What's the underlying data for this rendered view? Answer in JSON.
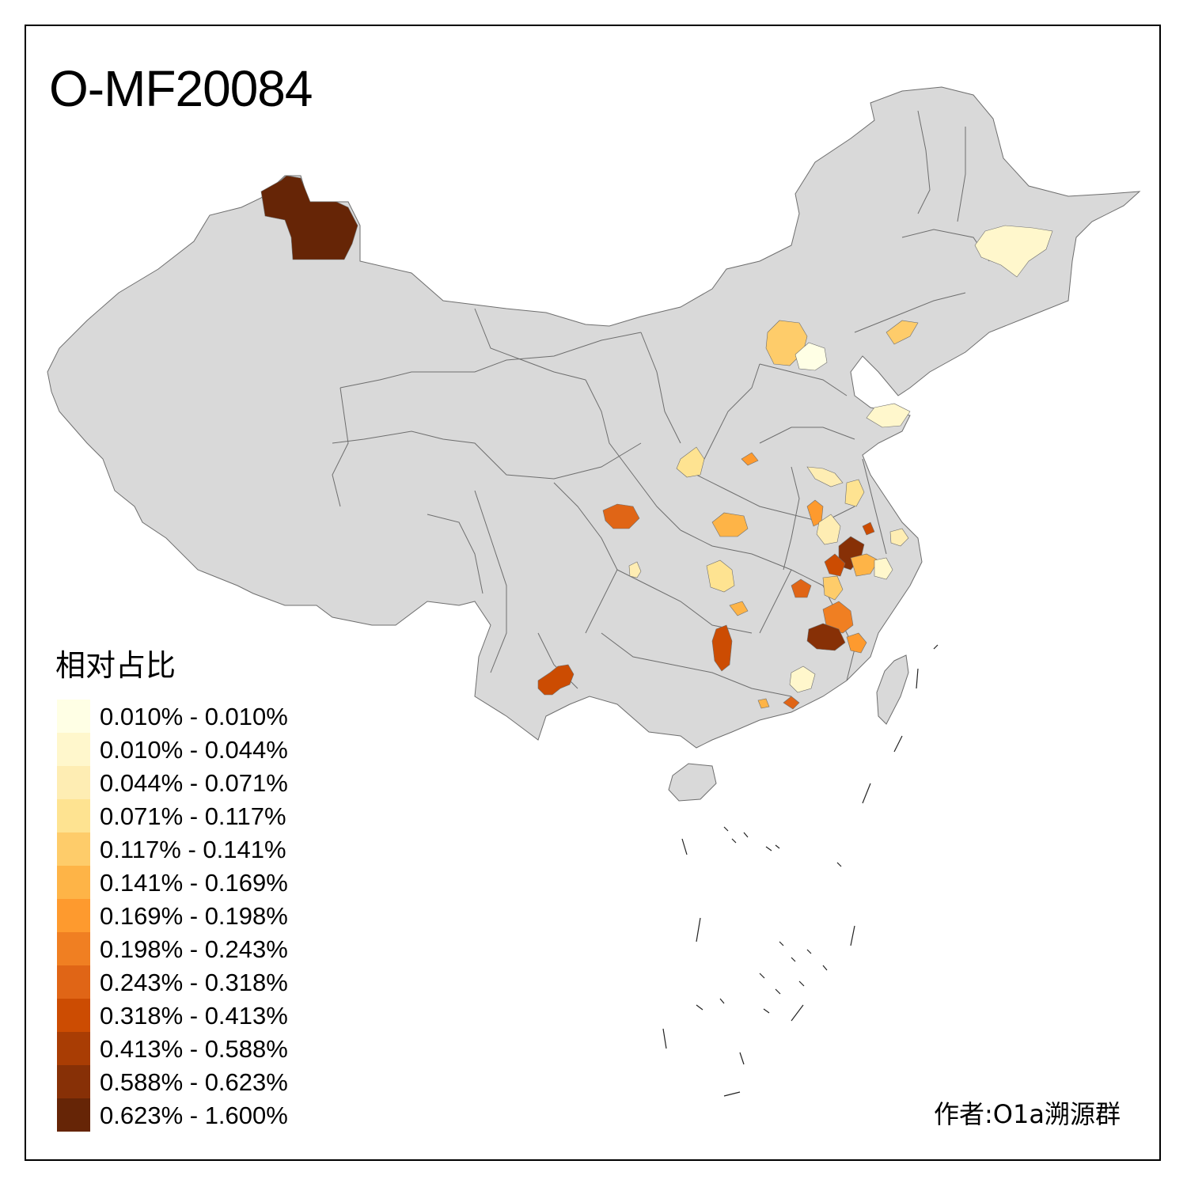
{
  "title": "O-MF20084",
  "legend": {
    "title": "相对占比",
    "items": [
      {
        "label": "0.010% - 0.010%",
        "color": "#ffffe5"
      },
      {
        "label": "0.010% - 0.044%",
        "color": "#fff7cc"
      },
      {
        "label": "0.044% - 0.071%",
        "color": "#feedb3"
      },
      {
        "label": "0.071% - 0.117%",
        "color": "#fee391"
      },
      {
        "label": "0.117% - 0.141%",
        "color": "#fecc6a"
      },
      {
        "label": "0.141% - 0.169%",
        "color": "#feb447"
      },
      {
        "label": "0.169% - 0.198%",
        "color": "#fe9a2e"
      },
      {
        "label": "0.198% - 0.243%",
        "color": "#f07f22"
      },
      {
        "label": "0.243% - 0.318%",
        "color": "#e06516"
      },
      {
        "label": "0.318% - 0.413%",
        "color": "#cc4c02"
      },
      {
        "label": "0.413% - 0.588%",
        "color": "#a93d04"
      },
      {
        "label": "0.588% - 0.623%",
        "color": "#873006"
      },
      {
        "label": "0.623% - 1.600%",
        "color": "#662506"
      }
    ]
  },
  "credit": "作者:O1a溯源群",
  "colors": {
    "no_data": "#d9d9d9",
    "boundary": "#6e6e6e",
    "frame": "#000000"
  }
}
